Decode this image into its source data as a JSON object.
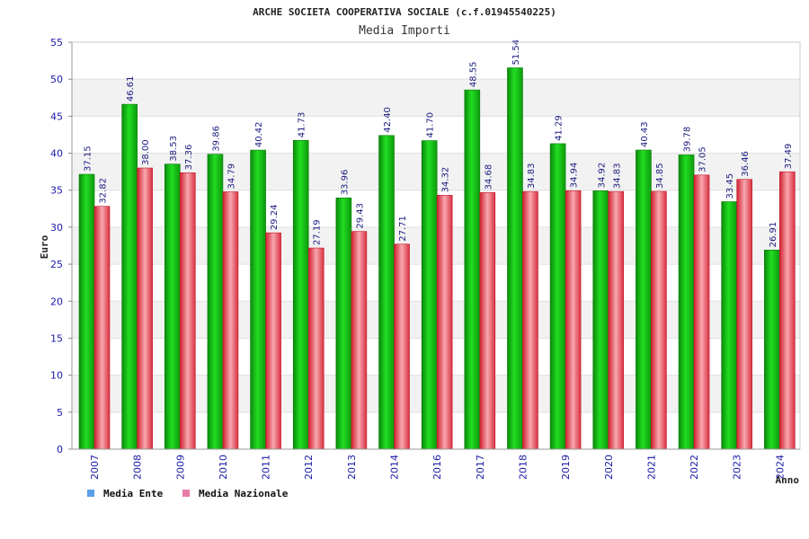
{
  "colors": {
    "series_1": "#11aa11",
    "series_2": "#e8505a",
    "legend_1": "#5aa0e8",
    "legend_2": "#e87aa8",
    "grid_band": "#f2f2f2",
    "axis_text": "#1a1aa6"
  },
  "chart_data": {
    "type": "bar",
    "title": "ARCHE SOCIETA COOPERATIVA SOCIALE (c.f.01945540225)",
    "subtitle": "Media Importi",
    "xlabel": "Anno",
    "ylabel": "Euro",
    "ylim": [
      0,
      55
    ],
    "yticks": [
      0,
      5,
      10,
      15,
      20,
      25,
      30,
      35,
      40,
      45,
      50,
      55
    ],
    "ytick_labels": [
      "0",
      "5",
      "10",
      "15",
      "20",
      "25",
      "30",
      "35",
      "40",
      "45",
      "50",
      "55"
    ],
    "grid": true,
    "legend_position": "bottom-left",
    "categories": [
      "2007",
      "2008",
      "2009",
      "2010",
      "2011",
      "2012",
      "2013",
      "2014",
      "2016",
      "2017",
      "2018",
      "2019",
      "2020",
      "2021",
      "2022",
      "2023",
      "2024"
    ],
    "series": [
      {
        "name": "Media Ente",
        "values": [
          37.15,
          46.61,
          38.53,
          39.86,
          40.42,
          41.73,
          33.96,
          42.4,
          41.7,
          48.55,
          51.54,
          41.29,
          34.92,
          40.43,
          39.78,
          33.45,
          26.91
        ],
        "labels": [
          "37.15",
          "46.61",
          "38.53",
          "39.86",
          "40.42",
          "41.73",
          "33.96",
          "42.40",
          "41.70",
          "48.55",
          "51.54",
          "41.29",
          "34.92",
          "40.43",
          "39.78",
          "33.45",
          "26.91"
        ]
      },
      {
        "name": "Media Nazionale",
        "values": [
          32.82,
          38.0,
          37.36,
          34.79,
          29.24,
          27.19,
          29.43,
          27.71,
          34.32,
          34.68,
          34.83,
          34.94,
          34.83,
          34.85,
          37.05,
          36.46,
          37.49
        ],
        "labels": [
          "32.82",
          "38.00",
          "37.36",
          "34.79",
          "29.24",
          "27.19",
          "29.43",
          "27.71",
          "34.32",
          "34.68",
          "34.83",
          "34.94",
          "34.83",
          "34.85",
          "37.05",
          "36.46",
          "37.49"
        ]
      }
    ]
  }
}
